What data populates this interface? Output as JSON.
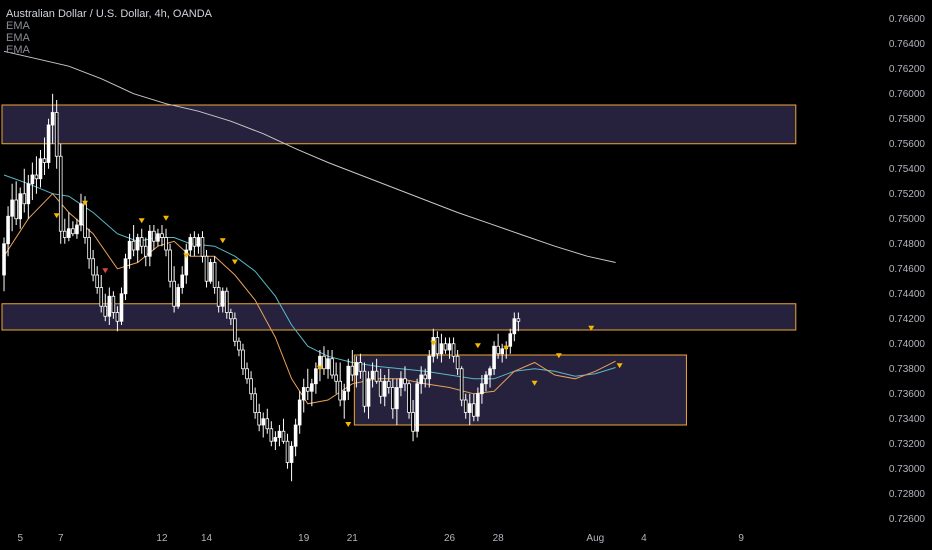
{
  "header": {
    "title": "Australian Dollar / U.S. Dollar, 4h, OANDA",
    "indicators": [
      "EMA",
      "EMA",
      "EMA"
    ]
  },
  "colors": {
    "background": "#000000",
    "candle": "#ffffff",
    "zone_fill": "#26223d",
    "zone_border": "#f0a733",
    "ema_fast": "#e8a15a",
    "ema_mid": "#5ab8c8",
    "ema_slow": "#c8c8c8",
    "marker": "#f5b800",
    "marker_red": "#e0443e"
  },
  "chart_data": {
    "type": "candlestick",
    "yaxis": {
      "ticks": [
        "0.76600",
        "0.76400",
        "0.76200",
        "0.76000",
        "0.75800",
        "0.75600",
        "0.75400",
        "0.75200",
        "0.75000",
        "0.74800",
        "0.74600",
        "0.74400",
        "0.74200",
        "0.74000",
        "0.73800",
        "0.73600",
        "0.73400",
        "0.73200",
        "0.73000",
        "0.72800",
        "0.72600"
      ],
      "range": [
        0.7255,
        0.7675
      ]
    },
    "xaxis": {
      "ticks": [
        "5",
        "7",
        "12",
        "14",
        "19",
        "21",
        "26",
        "28",
        "Aug",
        "4",
        "9"
      ],
      "tick_positions": [
        4,
        14,
        39,
        50,
        74,
        86,
        110,
        122,
        146,
        158,
        182
      ]
    },
    "zones": [
      {
        "from": 0.756,
        "to": 0.7591,
        "x_start": 0,
        "x_end": 196
      },
      {
        "from": 0.7411,
        "to": 0.7432,
        "x_start": 0,
        "x_end": 196
      },
      {
        "from": 0.7335,
        "to": 0.7391,
        "x_start": 87,
        "x_end": 169
      }
    ],
    "ohlc": [
      [
        0.7455,
        0.7485,
        0.7442,
        0.748
      ],
      [
        0.748,
        0.751,
        0.747,
        0.7502
      ],
      [
        0.7502,
        0.7528,
        0.749,
        0.7515
      ],
      [
        0.7515,
        0.753,
        0.7495,
        0.75
      ],
      [
        0.75,
        0.7525,
        0.7492,
        0.752
      ],
      [
        0.752,
        0.754,
        0.7505,
        0.7512
      ],
      [
        0.7512,
        0.7535,
        0.75,
        0.7528
      ],
      [
        0.7528,
        0.7545,
        0.7515,
        0.7535
      ],
      [
        0.7535,
        0.755,
        0.752,
        0.7532
      ],
      [
        0.7532,
        0.7555,
        0.7525,
        0.7548
      ],
      [
        0.7548,
        0.7565,
        0.7535,
        0.7545
      ],
      [
        0.7545,
        0.758,
        0.754,
        0.7575
      ],
      [
        0.7575,
        0.76,
        0.756,
        0.7585
      ],
      [
        0.7585,
        0.7595,
        0.754,
        0.755
      ],
      [
        0.755,
        0.756,
        0.748,
        0.749
      ],
      [
        0.749,
        0.75,
        0.748,
        0.7485
      ],
      [
        0.7485,
        0.7505,
        0.7482,
        0.7492
      ],
      [
        0.7492,
        0.7498,
        0.7486,
        0.7488
      ],
      [
        0.7488,
        0.75,
        0.7484,
        0.7495
      ],
      [
        0.7495,
        0.752,
        0.749,
        0.7512
      ],
      [
        0.7512,
        0.7518,
        0.748,
        0.7485
      ],
      [
        0.7485,
        0.7492,
        0.746,
        0.7468
      ],
      [
        0.7468,
        0.7475,
        0.745,
        0.7455
      ],
      [
        0.7455,
        0.7462,
        0.744,
        0.7445
      ],
      [
        0.7445,
        0.7455,
        0.7425,
        0.743
      ],
      [
        0.743,
        0.744,
        0.7418,
        0.7422
      ],
      [
        0.7422,
        0.7445,
        0.7415,
        0.7438
      ],
      [
        0.7438,
        0.7442,
        0.742,
        0.7425
      ],
      [
        0.7425,
        0.743,
        0.741,
        0.7418
      ],
      [
        0.7418,
        0.7445,
        0.7415,
        0.744
      ],
      [
        0.744,
        0.7472,
        0.7435,
        0.7468
      ],
      [
        0.7468,
        0.7488,
        0.746,
        0.7482
      ],
      [
        0.7482,
        0.7495,
        0.747,
        0.7475
      ],
      [
        0.7475,
        0.7488,
        0.7465,
        0.7485
      ],
      [
        0.7485,
        0.7492,
        0.7472,
        0.7478
      ],
      [
        0.7478,
        0.7485,
        0.7462,
        0.747
      ],
      [
        0.747,
        0.7495,
        0.7462,
        0.749
      ],
      [
        0.749,
        0.7495,
        0.7475,
        0.7482
      ],
      [
        0.7482,
        0.7492,
        0.7478,
        0.7488
      ],
      [
        0.7488,
        0.7495,
        0.7478,
        0.7485
      ],
      [
        0.7485,
        0.7492,
        0.747,
        0.7475
      ],
      [
        0.7475,
        0.748,
        0.7445,
        0.745
      ],
      [
        0.745,
        0.7462,
        0.7425,
        0.743
      ],
      [
        0.743,
        0.7448,
        0.7428,
        0.7445
      ],
      [
        0.7445,
        0.7462,
        0.744,
        0.7455
      ],
      [
        0.7455,
        0.748,
        0.7448,
        0.7475
      ],
      [
        0.7475,
        0.7488,
        0.747,
        0.7485
      ],
      [
        0.7485,
        0.749,
        0.747,
        0.7478
      ],
      [
        0.7478,
        0.7488,
        0.7472,
        0.7485
      ],
      [
        0.7485,
        0.749,
        0.7465,
        0.747
      ],
      [
        0.747,
        0.7475,
        0.7445,
        0.745
      ],
      [
        0.745,
        0.7468,
        0.7448,
        0.7465
      ],
      [
        0.7465,
        0.747,
        0.744,
        0.7445
      ],
      [
        0.7445,
        0.745,
        0.7425,
        0.743
      ],
      [
        0.743,
        0.7445,
        0.7425,
        0.7442
      ],
      [
        0.7442,
        0.7445,
        0.742,
        0.7425
      ],
      [
        0.7425,
        0.7428,
        0.7415,
        0.742
      ],
      [
        0.742,
        0.7425,
        0.7398,
        0.7402
      ],
      [
        0.7402,
        0.7405,
        0.739,
        0.7395
      ],
      [
        0.7395,
        0.74,
        0.7375,
        0.738
      ],
      [
        0.738,
        0.7385,
        0.7368,
        0.7372
      ],
      [
        0.7372,
        0.7378,
        0.7355,
        0.736
      ],
      [
        0.736,
        0.7365,
        0.734,
        0.7345
      ],
      [
        0.7345,
        0.7352,
        0.733,
        0.7335
      ],
      [
        0.7335,
        0.7345,
        0.7325,
        0.734
      ],
      [
        0.734,
        0.7348,
        0.7328,
        0.7332
      ],
      [
        0.7332,
        0.7338,
        0.7318,
        0.7322
      ],
      [
        0.7322,
        0.733,
        0.7315,
        0.7325
      ],
      [
        0.7325,
        0.7335,
        0.7318,
        0.733
      ],
      [
        0.733,
        0.734,
        0.732,
        0.7322
      ],
      [
        0.7322,
        0.7328,
        0.73,
        0.7305
      ],
      [
        0.7305,
        0.7322,
        0.729,
        0.7318
      ],
      [
        0.7318,
        0.734,
        0.731,
        0.7335
      ],
      [
        0.7335,
        0.7362,
        0.7328,
        0.7355
      ],
      [
        0.7355,
        0.7372,
        0.7345,
        0.7365
      ],
      [
        0.7365,
        0.738,
        0.7355,
        0.7362
      ],
      [
        0.7362,
        0.7372,
        0.735,
        0.7368
      ],
      [
        0.7368,
        0.7385,
        0.736,
        0.738
      ],
      [
        0.738,
        0.7395,
        0.737,
        0.739
      ],
      [
        0.739,
        0.7398,
        0.7375,
        0.738
      ],
      [
        0.738,
        0.7395,
        0.7372,
        0.7388
      ],
      [
        0.7388,
        0.7395,
        0.7372,
        0.7375
      ],
      [
        0.7375,
        0.7385,
        0.736,
        0.737
      ],
      [
        0.737,
        0.7385,
        0.735,
        0.7355
      ],
      [
        0.7355,
        0.7368,
        0.734,
        0.7362
      ],
      [
        0.7362,
        0.7388,
        0.7355,
        0.7382
      ],
      [
        0.7382,
        0.7395,
        0.737,
        0.7375
      ],
      [
        0.7375,
        0.739,
        0.7365,
        0.7385
      ],
      [
        0.7385,
        0.7392,
        0.7372,
        0.7378
      ],
      [
        0.7378,
        0.7385,
        0.7345,
        0.735
      ],
      [
        0.735,
        0.7378,
        0.734,
        0.7372
      ],
      [
        0.7372,
        0.7385,
        0.7365,
        0.7378
      ],
      [
        0.7378,
        0.7388,
        0.7368,
        0.737
      ],
      [
        0.737,
        0.738,
        0.7352,
        0.7358
      ],
      [
        0.7358,
        0.7375,
        0.735,
        0.737
      ],
      [
        0.737,
        0.738,
        0.736,
        0.7365
      ],
      [
        0.7365,
        0.7372,
        0.734,
        0.7348
      ],
      [
        0.7348,
        0.7372,
        0.7335,
        0.7365
      ],
      [
        0.7365,
        0.7378,
        0.7358,
        0.7372
      ],
      [
        0.7372,
        0.7382,
        0.7362,
        0.7368
      ],
      [
        0.7368,
        0.737,
        0.734,
        0.7345
      ],
      [
        0.7345,
        0.7355,
        0.7322,
        0.733
      ],
      [
        0.733,
        0.7372,
        0.7325,
        0.7368
      ],
      [
        0.7368,
        0.7382,
        0.736,
        0.7375
      ],
      [
        0.7375,
        0.738,
        0.7365,
        0.7372
      ],
      [
        0.7372,
        0.7395,
        0.7365,
        0.739
      ],
      [
        0.739,
        0.7412,
        0.7385,
        0.7405
      ],
      [
        0.7405,
        0.741,
        0.7388,
        0.7392
      ],
      [
        0.7392,
        0.7408,
        0.7385,
        0.74
      ],
      [
        0.74,
        0.7405,
        0.7392,
        0.7395
      ],
      [
        0.7395,
        0.7405,
        0.7388,
        0.74
      ],
      [
        0.74,
        0.7405,
        0.7385,
        0.739
      ],
      [
        0.739,
        0.7395,
        0.7375,
        0.738
      ],
      [
        0.738,
        0.7382,
        0.735,
        0.7355
      ],
      [
        0.7355,
        0.736,
        0.734,
        0.7345
      ],
      [
        0.7345,
        0.736,
        0.7335,
        0.7352
      ],
      [
        0.7352,
        0.736,
        0.7338,
        0.7342
      ],
      [
        0.7342,
        0.7365,
        0.7338,
        0.736
      ],
      [
        0.736,
        0.7375,
        0.7352,
        0.7368
      ],
      [
        0.7368,
        0.7378,
        0.7362,
        0.7375
      ],
      [
        0.7375,
        0.7382,
        0.7365,
        0.738
      ],
      [
        0.738,
        0.7402,
        0.7375,
        0.7398
      ],
      [
        0.7398,
        0.7408,
        0.7388,
        0.7392
      ],
      [
        0.7392,
        0.74,
        0.7385,
        0.7396
      ],
      [
        0.7396,
        0.7402,
        0.7388,
        0.7398
      ],
      [
        0.7398,
        0.7412,
        0.7392,
        0.7408
      ],
      [
        0.7408,
        0.7425,
        0.7402,
        0.742
      ],
      [
        0.742,
        0.7425,
        0.741,
        0.7418
      ]
    ],
    "ema_fast": [
      [
        0,
        0.747
      ],
      [
        6,
        0.75
      ],
      [
        12,
        0.752
      ],
      [
        16,
        0.7505
      ],
      [
        22,
        0.7488
      ],
      [
        28,
        0.746
      ],
      [
        33,
        0.7465
      ],
      [
        38,
        0.7478
      ],
      [
        42,
        0.7482
      ],
      [
        46,
        0.747
      ],
      [
        52,
        0.747
      ],
      [
        57,
        0.7455
      ],
      [
        62,
        0.7435
      ],
      [
        67,
        0.7405
      ],
      [
        71,
        0.7372
      ],
      [
        75,
        0.7352
      ],
      [
        80,
        0.7355
      ],
      [
        86,
        0.7368
      ],
      [
        92,
        0.7372
      ],
      [
        98,
        0.7372
      ],
      [
        104,
        0.7368
      ],
      [
        110,
        0.7365
      ],
      [
        116,
        0.736
      ],
      [
        121,
        0.7362
      ],
      [
        126,
        0.7378
      ],
      [
        131,
        0.7385
      ],
      [
        136,
        0.7375
      ],
      [
        141,
        0.7372
      ],
      [
        146,
        0.7378
      ],
      [
        151,
        0.7386
      ]
    ],
    "ema_mid": [
      [
        0,
        0.7535
      ],
      [
        6,
        0.7528
      ],
      [
        12,
        0.752
      ],
      [
        16,
        0.7518
      ],
      [
        22,
        0.7505
      ],
      [
        28,
        0.7488
      ],
      [
        33,
        0.7482
      ],
      [
        38,
        0.7485
      ],
      [
        42,
        0.7485
      ],
      [
        46,
        0.748
      ],
      [
        52,
        0.7478
      ],
      [
        57,
        0.747
      ],
      [
        62,
        0.7458
      ],
      [
        67,
        0.7438
      ],
      [
        71,
        0.7415
      ],
      [
        75,
        0.7398
      ],
      [
        80,
        0.739
      ],
      [
        86,
        0.7385
      ],
      [
        92,
        0.7382
      ],
      [
        98,
        0.738
      ],
      [
        104,
        0.7378
      ],
      [
        110,
        0.7375
      ],
      [
        116,
        0.7372
      ],
      [
        121,
        0.7372
      ],
      [
        126,
        0.7378
      ],
      [
        131,
        0.738
      ],
      [
        136,
        0.7378
      ],
      [
        141,
        0.7374
      ],
      [
        146,
        0.7376
      ],
      [
        151,
        0.7381
      ]
    ],
    "ema_slow": [
      [
        0,
        0.7634
      ],
      [
        8,
        0.7628
      ],
      [
        16,
        0.7622
      ],
      [
        24,
        0.7612
      ],
      [
        32,
        0.76
      ],
      [
        40,
        0.7592
      ],
      [
        48,
        0.7586
      ],
      [
        56,
        0.7578
      ],
      [
        64,
        0.7568
      ],
      [
        72,
        0.7556
      ],
      [
        80,
        0.7545
      ],
      [
        88,
        0.7535
      ],
      [
        96,
        0.7525
      ],
      [
        104,
        0.7515
      ],
      [
        112,
        0.7505
      ],
      [
        120,
        0.7496
      ],
      [
        128,
        0.7487
      ],
      [
        136,
        0.7478
      ],
      [
        144,
        0.747
      ],
      [
        151,
        0.7465
      ]
    ],
    "markers_down": [
      [
        13,
        0.7502,
        "yellow"
      ],
      [
        20,
        0.7512,
        "yellow"
      ],
      [
        25,
        0.7458,
        "red"
      ],
      [
        34,
        0.7498,
        "yellow"
      ],
      [
        40,
        0.75,
        "yellow"
      ],
      [
        45,
        0.747,
        "yellow"
      ],
      [
        54,
        0.7482,
        "yellow"
      ],
      [
        57,
        0.7465,
        "yellow"
      ],
      [
        78,
        0.738,
        "yellow"
      ],
      [
        85,
        0.7335,
        "yellow"
      ],
      [
        106,
        0.74,
        "yellow"
      ],
      [
        117,
        0.7398,
        "yellow"
      ],
      [
        124,
        0.7396,
        "yellow"
      ],
      [
        131,
        0.7368,
        "yellow"
      ],
      [
        137,
        0.739,
        "yellow"
      ],
      [
        145,
        0.7412,
        "yellow"
      ],
      [
        152,
        0.7382,
        "yellow"
      ]
    ]
  }
}
